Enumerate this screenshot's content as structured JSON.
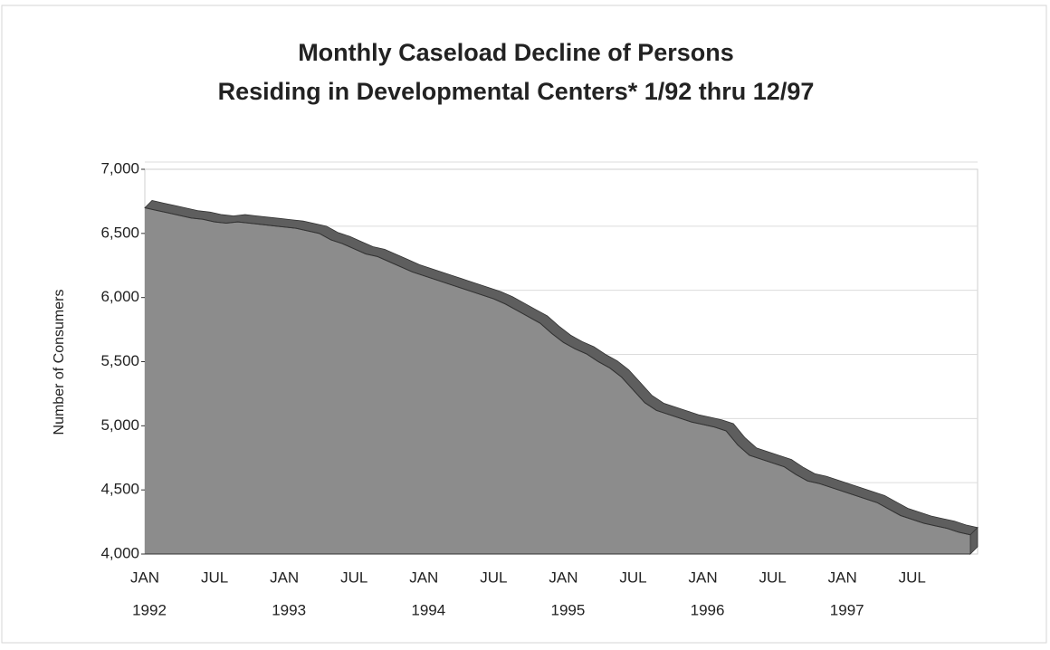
{
  "chart_data": {
    "type": "area",
    "title": [
      "Monthly Caseload Decline of Persons",
      "Residing in Developmental Centers* 1/92 thru 12/97"
    ],
    "ylabel": "Number of Consumers",
    "categories": [
      "JAN",
      null,
      null,
      null,
      null,
      null,
      "JUL",
      null,
      null,
      null,
      null,
      null,
      "JAN",
      null,
      null,
      null,
      null,
      null,
      "JUL",
      null,
      null,
      null,
      null,
      null,
      "JAN",
      null,
      null,
      null,
      null,
      null,
      "JUL",
      null,
      null,
      null,
      null,
      null,
      "JAN",
      null,
      null,
      null,
      null,
      null,
      "JUL",
      null,
      null,
      null,
      null,
      null,
      "JAN",
      null,
      null,
      null,
      null,
      null,
      "JUL",
      null,
      null,
      null,
      null,
      null,
      "JAN",
      null,
      null,
      null,
      null,
      null,
      "JUL",
      null,
      null,
      null,
      null,
      null
    ],
    "year_labels": [
      "1992",
      "1993",
      "1994",
      "1995",
      "1996",
      "1997"
    ],
    "values": [
      6700,
      6680,
      6660,
      6640,
      6620,
      6610,
      6590,
      6580,
      6590,
      6580,
      6570,
      6560,
      6550,
      6540,
      6520,
      6500,
      6450,
      6420,
      6380,
      6340,
      6320,
      6280,
      6240,
      6200,
      6170,
      6140,
      6110,
      6080,
      6050,
      6020,
      5990,
      5950,
      5900,
      5850,
      5800,
      5720,
      5650,
      5600,
      5560,
      5500,
      5450,
      5380,
      5280,
      5180,
      5120,
      5090,
      5060,
      5030,
      5010,
      4990,
      4960,
      4850,
      4770,
      4740,
      4710,
      4680,
      4620,
      4570,
      4550,
      4520,
      4490,
      4460,
      4430,
      4400,
      4350,
      4300,
      4270,
      4240,
      4220,
      4200,
      4170,
      4150
    ],
    "color": "#8c8c8c",
    "edge_color": "#5e5e5e",
    "ylim": [
      4000,
      7000
    ],
    "yticks": [
      {
        "value": 4000,
        "label": "4,000"
      },
      {
        "value": 4500,
        "label": "4,500"
      },
      {
        "value": 5000,
        "label": "5,000"
      },
      {
        "value": 5500,
        "label": "5,500"
      },
      {
        "value": 6000,
        "label": "6,000"
      },
      {
        "value": 6500,
        "label": "6,500"
      },
      {
        "value": 7000,
        "label": "7,000"
      }
    ],
    "grid": true
  }
}
